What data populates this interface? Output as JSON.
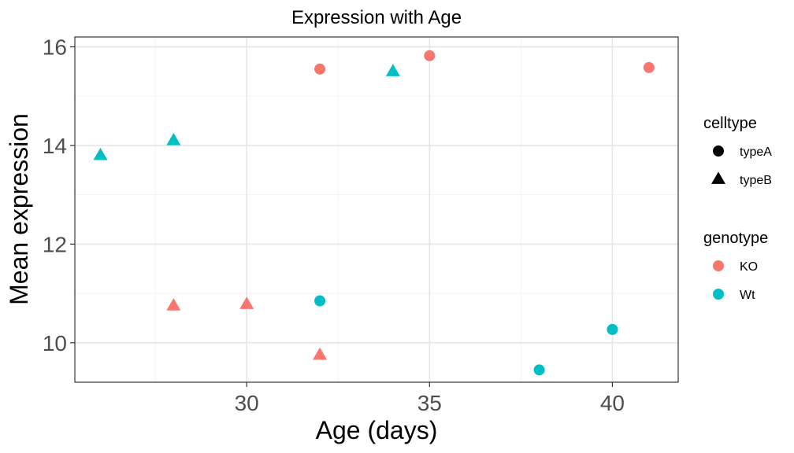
{
  "chart_data": {
    "type": "scatter",
    "title": "Expression with Age",
    "xlabel": "Age (days)",
    "ylabel": "Mean expression",
    "xlim": [
      25.3,
      41.8
    ],
    "ylim": [
      9.2,
      16.2
    ],
    "x_ticks": [
      30,
      35,
      40
    ],
    "y_ticks": [
      10,
      12,
      14,
      16
    ],
    "x_minor": [
      27.5,
      32.5,
      37.5
    ],
    "y_minor": [
      11,
      13,
      15
    ],
    "grid": true,
    "legend_position": "right",
    "colors": {
      "KO": "#F8766D",
      "Wt": "#00BFC4"
    },
    "shapes": {
      "typeA": "circle",
      "typeB": "triangle"
    },
    "legends": [
      {
        "title": "celltype",
        "entries": [
          {
            "label": "typeA",
            "shape": "circle",
            "color": "#000000"
          },
          {
            "label": "typeB",
            "shape": "triangle",
            "color": "#000000"
          }
        ]
      },
      {
        "title": "genotype",
        "entries": [
          {
            "label": "KO",
            "shape": "circle",
            "color": "#F8766D"
          },
          {
            "label": "Wt",
            "shape": "circle",
            "color": "#00BFC4"
          }
        ]
      }
    ],
    "points": [
      {
        "x": 26,
        "y": 13.8,
        "celltype": "typeB",
        "genotype": "Wt"
      },
      {
        "x": 28,
        "y": 14.1,
        "celltype": "typeB",
        "genotype": "Wt"
      },
      {
        "x": 34,
        "y": 15.5,
        "celltype": "typeB",
        "genotype": "Wt"
      },
      {
        "x": 32,
        "y": 10.85,
        "celltype": "typeA",
        "genotype": "Wt"
      },
      {
        "x": 38,
        "y": 9.45,
        "celltype": "typeA",
        "genotype": "Wt"
      },
      {
        "x": 40,
        "y": 10.27,
        "celltype": "typeA",
        "genotype": "Wt"
      },
      {
        "x": 32,
        "y": 15.55,
        "celltype": "typeA",
        "genotype": "KO"
      },
      {
        "x": 35,
        "y": 15.82,
        "celltype": "typeA",
        "genotype": "KO"
      },
      {
        "x": 41,
        "y": 15.58,
        "celltype": "typeA",
        "genotype": "KO"
      },
      {
        "x": 28,
        "y": 10.75,
        "celltype": "typeB",
        "genotype": "KO"
      },
      {
        "x": 30,
        "y": 10.78,
        "celltype": "typeB",
        "genotype": "KO"
      },
      {
        "x": 32,
        "y": 9.75,
        "celltype": "typeB",
        "genotype": "KO"
      }
    ]
  }
}
